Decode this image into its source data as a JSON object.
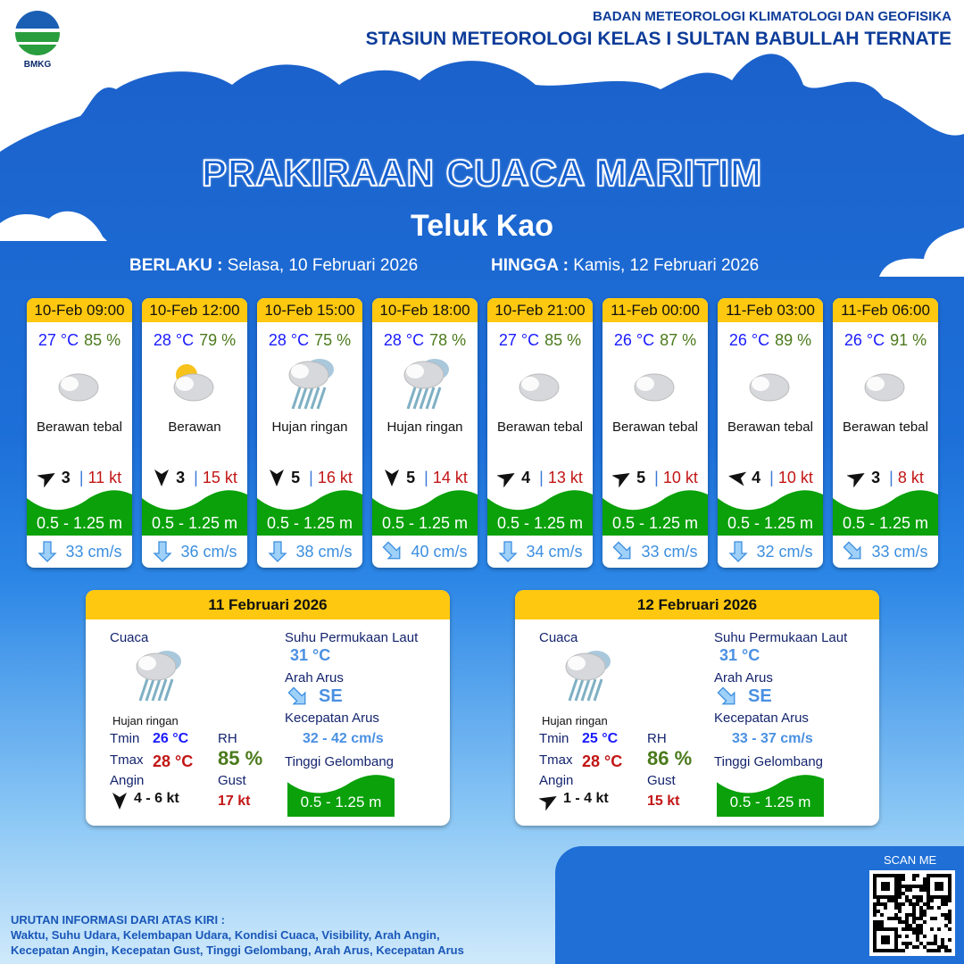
{
  "header": {
    "logo_text": "BMKG",
    "org": "BADAN METEOROLOGI KLIMATOLOGI DAN GEOFISIKA",
    "station": "STASIUN METEOROLOGI KELAS I SULTAN BABULLAH TERNATE"
  },
  "title": "PRAKIRAAN CUACA MARITIM",
  "location": "Teluk Kao",
  "validity": {
    "from_label": "BERLAKU :",
    "from": "Selasa, 10 Februari 2026",
    "to_label": "HINGGA :",
    "to": "Kamis, 12 Februari 2026"
  },
  "colors": {
    "header_yellow": "#fdc80f",
    "wave_green": "#0aa10a",
    "temp_blue": "#1a1aff",
    "rh_green": "#4b7a1c",
    "gust_red": "#c31616"
  },
  "forecasts": [
    {
      "time": "10-Feb 09:00",
      "temp": "27 °C",
      "rh": "85 %",
      "icon": "cloudy-icon",
      "weather": "Berawan tebal",
      "wind_dir_deg": 60,
      "wind": "3",
      "gust": "11 kt",
      "wave": "0.5 - 1.25 m",
      "current_dir_deg": 180,
      "current": "33 cm/s"
    },
    {
      "time": "10-Feb 12:00",
      "temp": "28 °C",
      "rh": "79 %",
      "icon": "partly-cloudy-icon",
      "weather": "Berawan",
      "wind_dir_deg": 180,
      "wind": "3",
      "gust": "15 kt",
      "wave": "0.5 - 1.25 m",
      "current_dir_deg": 180,
      "current": "36 cm/s"
    },
    {
      "time": "10-Feb 15:00",
      "temp": "28 °C",
      "rh": "75 %",
      "icon": "rain-icon",
      "weather": "Hujan ringan",
      "wind_dir_deg": 180,
      "wind": "5",
      "gust": "16 kt",
      "wave": "0.5 - 1.25 m",
      "current_dir_deg": 180,
      "current": "38 cm/s"
    },
    {
      "time": "10-Feb 18:00",
      "temp": "28 °C",
      "rh": "78 %",
      "icon": "rain-icon",
      "weather": "Hujan ringan",
      "wind_dir_deg": 180,
      "wind": "5",
      "gust": "14 kt",
      "wave": "0.5 - 1.25 m",
      "current_dir_deg": 135,
      "current": "40 cm/s"
    },
    {
      "time": "10-Feb 21:00",
      "temp": "27 °C",
      "rh": "85 %",
      "icon": "cloudy-icon",
      "weather": "Berawan tebal",
      "wind_dir_deg": 60,
      "wind": "4",
      "gust": "13 kt",
      "wave": "0.5 - 1.25 m",
      "current_dir_deg": 180,
      "current": "34 cm/s"
    },
    {
      "time": "11-Feb 00:00",
      "temp": "26 °C",
      "rh": "87 %",
      "icon": "cloudy-icon",
      "weather": "Berawan tebal",
      "wind_dir_deg": 60,
      "wind": "5",
      "gust": "10 kt",
      "wave": "0.5 - 1.25 m",
      "current_dir_deg": 135,
      "current": "33 cm/s"
    },
    {
      "time": "11-Feb 03:00",
      "temp": "26 °C",
      "rh": "89 %",
      "icon": "cloudy-icon",
      "weather": "Berawan tebal",
      "wind_dir_deg": 280,
      "wind": "4",
      "gust": "10 kt",
      "wave": "0.5 - 1.25 m",
      "current_dir_deg": 180,
      "current": "32 cm/s"
    },
    {
      "time": "11-Feb 06:00",
      "temp": "26 °C",
      "rh": "91 %",
      "icon": "cloudy-icon",
      "weather": "Berawan tebal",
      "wind_dir_deg": 60,
      "wind": "3",
      "gust": "8 kt",
      "wave": "0.5 - 1.25 m",
      "current_dir_deg": 135,
      "current": "33 cm/s"
    }
  ],
  "labels": {
    "weather": "Cuaca",
    "tmin": "Tmin",
    "tmax": "Tmax",
    "wind": "Angin",
    "rh": "RH",
    "gust": "Gust",
    "sst": "Suhu Permukaan Laut",
    "current_dir": "Arah Arus",
    "current_speed": "Kecepatan Arus",
    "wave": "Tinggi Gelombang"
  },
  "daily": [
    {
      "date": "11 Februari 2026",
      "weather": "Hujan ringan",
      "tmin": "26 °C",
      "tmax": "28 °C",
      "rh": "85 %",
      "wind_dir_deg": 180,
      "wind": "4  - 6 kt",
      "gust": "17 kt",
      "sst": "31 °C",
      "current_dir": "SE",
      "current_speed": "32 - 42 cm/s",
      "wave": "0.5 - 1.25 m"
    },
    {
      "date": "12 Februari 2026",
      "weather": "Hujan ringan",
      "tmin": "25 °C",
      "tmax": "28 °C",
      "rh": "86 %",
      "wind_dir_deg": 60,
      "wind": "1  - 4 kt",
      "gust": "15 kt",
      "sst": "31 °C",
      "current_dir": "SE",
      "current_speed": "33 - 37 cm/s",
      "wave": "0.5 - 1.25 m"
    }
  ],
  "footer": {
    "title": "URUTAN INFORMASI DARI ATAS KIRI :",
    "line1": "Waktu, Suhu Udara, Kelembapan Udara, Kondisi Cuaca, Visibility, Arah Angin,",
    "line2": "Kecepatan Angin, Kecepatan Gust, Tinggi Gelombang, Arah Arus, Kecepatan Arus"
  },
  "qr": {
    "label": "SCAN ME"
  }
}
